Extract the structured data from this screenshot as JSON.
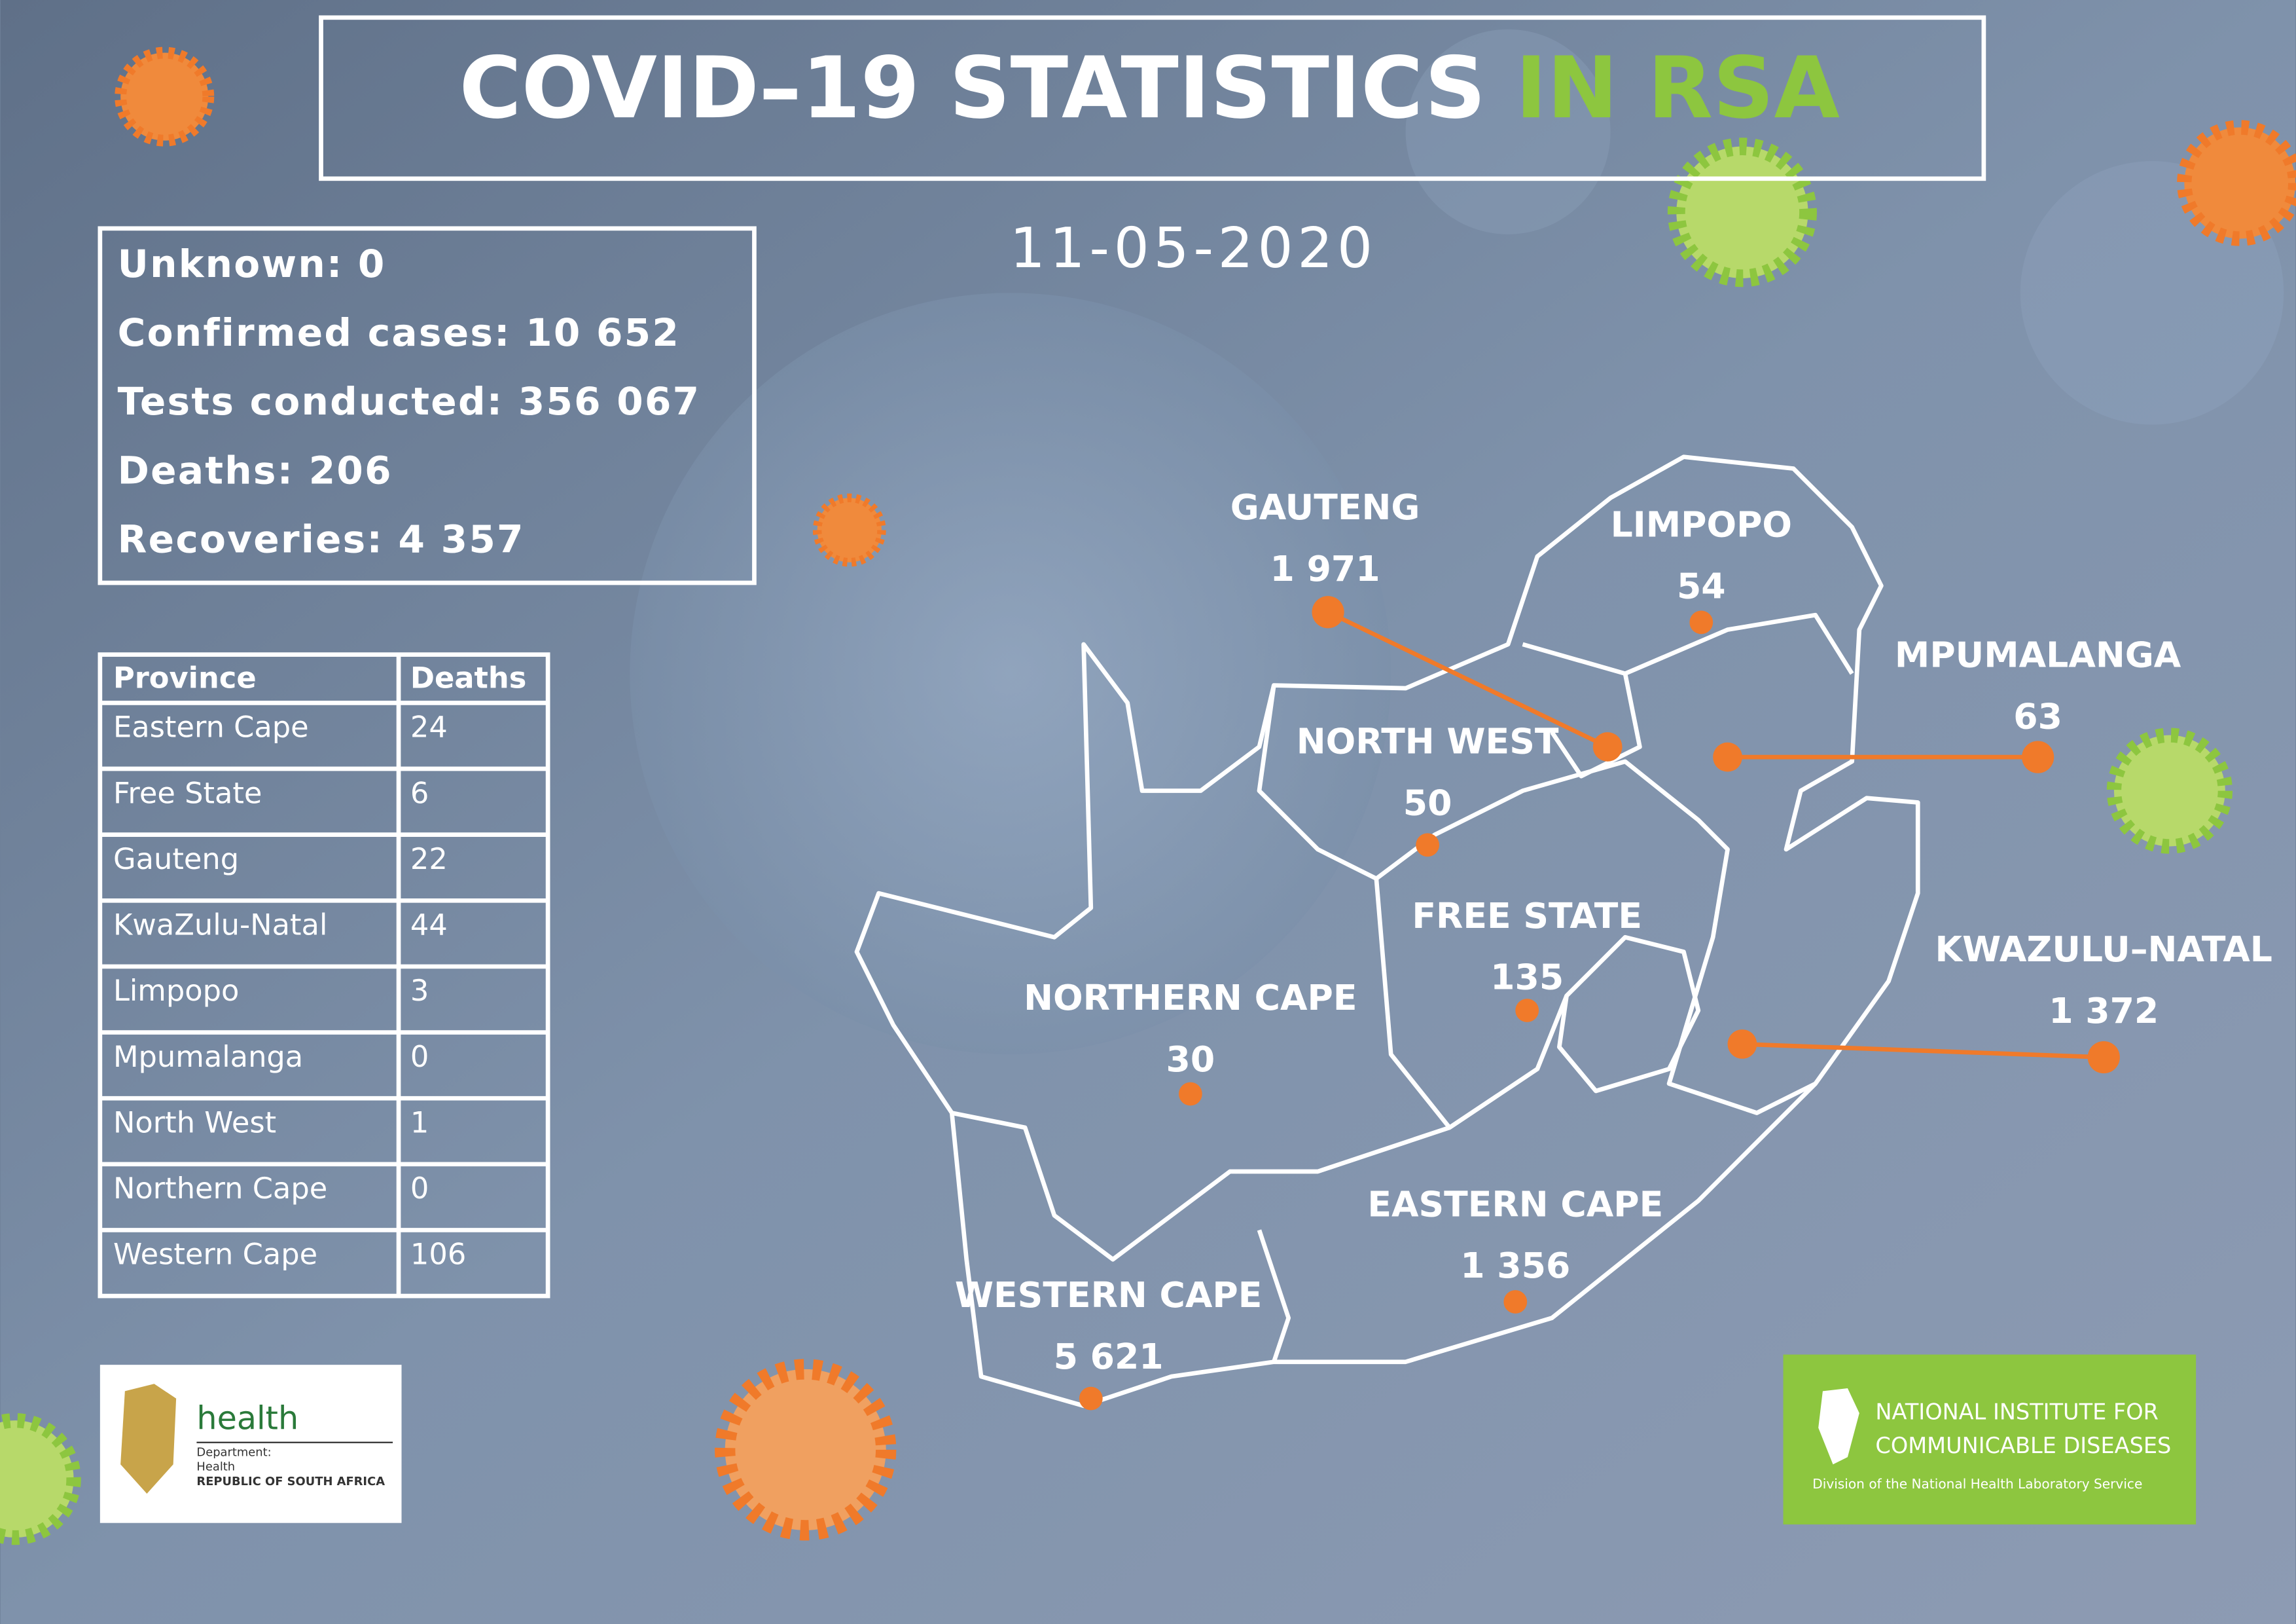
{
  "header": {
    "title_main": "COVID–19 STATISTICS",
    "title_accent": "IN RSA",
    "date": "11-05-2020"
  },
  "summary": [
    {
      "label": "Unknown:",
      "value": "0"
    },
    {
      "label": "Confirmed cases:",
      "value": "10 652"
    },
    {
      "label": "Tests conducted:",
      "value": "356 067"
    },
    {
      "label": "Deaths:",
      "value": "206"
    },
    {
      "label": "Recoveries:",
      "value": "4 357"
    }
  ],
  "deaths_table": {
    "columns": [
      "Province",
      "Deaths"
    ],
    "rows": [
      [
        "Eastern Cape",
        "24"
      ],
      [
        "Free State",
        "6"
      ],
      [
        "Gauteng",
        "22"
      ],
      [
        "KwaZulu-Natal",
        "44"
      ],
      [
        "Limpopo",
        "3"
      ],
      [
        "Mpumalanga",
        "0"
      ],
      [
        "North West",
        "1"
      ],
      [
        "Northern Cape",
        "0"
      ],
      [
        "Western Cape",
        "106"
      ]
    ]
  },
  "map": {
    "provinces": [
      {
        "name": "GAUTENG",
        "cases": "1 971"
      },
      {
        "name": "LIMPOPO",
        "cases": "54"
      },
      {
        "name": "MPUMALANGA",
        "cases": "63"
      },
      {
        "name": "NORTH WEST",
        "cases": "50"
      },
      {
        "name": "FREE STATE",
        "cases": "135"
      },
      {
        "name": "NORTHERN CAPE",
        "cases": "30"
      },
      {
        "name": "KWAZULU–NATAL",
        "cases": "1 372"
      },
      {
        "name": "EASTERN CAPE",
        "cases": "1 356"
      },
      {
        "name": "WESTERN CAPE",
        "cases": "5 621"
      }
    ]
  },
  "logos": {
    "health": {
      "name": "health",
      "lines": [
        "Department:",
        "Health",
        "REPUBLIC OF SOUTH AFRICA"
      ]
    },
    "nicd": {
      "lines": [
        "NATIONAL INSTITUTE FOR",
        "COMMUNICABLE DISEASES",
        "Division of the National Health Laboratory Service"
      ]
    }
  }
}
